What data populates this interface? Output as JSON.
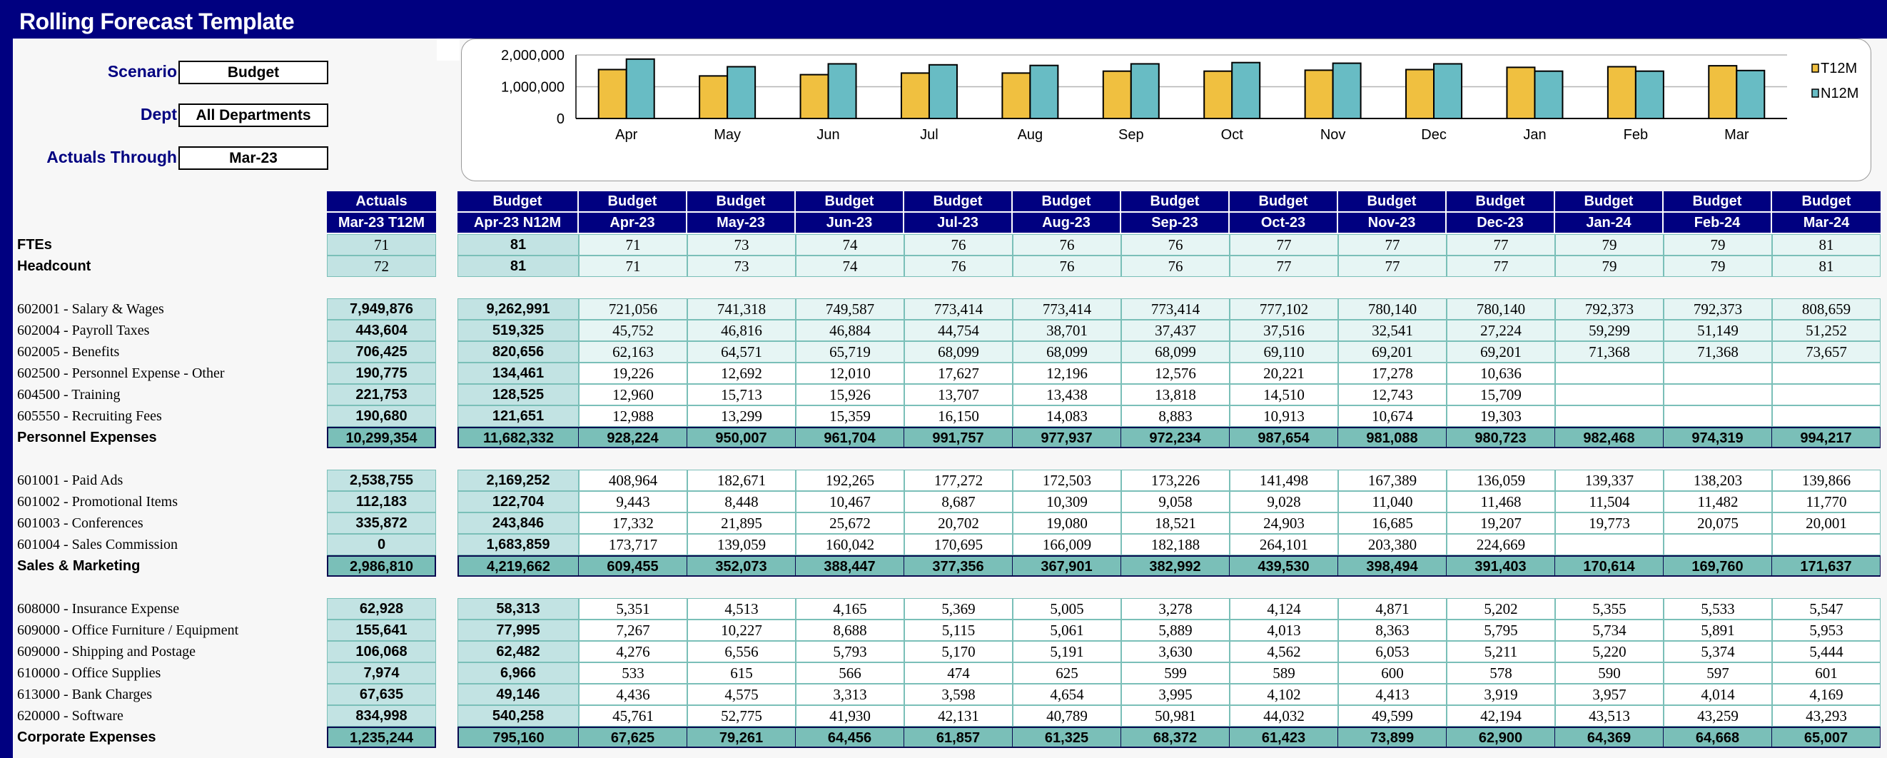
{
  "app": {
    "title": "Rolling Forecast Template"
  },
  "filters": [
    {
      "label": "Scenario",
      "value": "Budget"
    },
    {
      "label": "Dept",
      "value": "All Departments"
    },
    {
      "label": "Actuals Through",
      "value": "Mar-23"
    }
  ],
  "colors": {
    "navy": "#000080",
    "t12m": "#F0C040",
    "n12m": "#68BCC4",
    "total_fill": "#7ABFB8",
    "actual_fill": "#C2E3E3",
    "light_fill": "#E6F5F4"
  },
  "chart_data": {
    "type": "bar",
    "categories": [
      "Apr",
      "May",
      "Jun",
      "Jul",
      "Aug",
      "Sep",
      "Oct",
      "Nov",
      "Dec",
      "Jan",
      "Feb",
      "Mar"
    ],
    "series": [
      {
        "name": "T12M",
        "values": [
          1540000,
          1340000,
          1380000,
          1430000,
          1430000,
          1490000,
          1490000,
          1520000,
          1540000,
          1610000,
          1630000,
          1660000
        ]
      },
      {
        "name": "N12M",
        "values": [
          1870000,
          1630000,
          1720000,
          1690000,
          1670000,
          1720000,
          1760000,
          1740000,
          1720000,
          1490000,
          1490000,
          1510000
        ]
      }
    ],
    "yticks": [
      "0",
      "1,000,000",
      "2,000,000"
    ],
    "ylim": [
      0,
      2000000
    ],
    "grid": true,
    "legend": "right",
    "title": "",
    "xlabel": "",
    "ylabel": ""
  },
  "table": {
    "actual_header": {
      "top": "Actuals",
      "bottom": "Mar-23 T12M"
    },
    "n12m_header": {
      "top": "Budget",
      "bottom": "Apr-23 N12M"
    },
    "month_headers": [
      {
        "top": "Budget",
        "bottom": "Apr-23"
      },
      {
        "top": "Budget",
        "bottom": "May-23"
      },
      {
        "top": "Budget",
        "bottom": "Jun-23"
      },
      {
        "top": "Budget",
        "bottom": "Jul-23"
      },
      {
        "top": "Budget",
        "bottom": "Aug-23"
      },
      {
        "top": "Budget",
        "bottom": "Sep-23"
      },
      {
        "top": "Budget",
        "bottom": "Oct-23"
      },
      {
        "top": "Budget",
        "bottom": "Nov-23"
      },
      {
        "top": "Budget",
        "bottom": "Dec-23"
      },
      {
        "top": "Budget",
        "bottom": "Jan-24"
      },
      {
        "top": "Budget",
        "bottom": "Feb-24"
      },
      {
        "top": "Budget",
        "bottom": "Mar-24"
      }
    ],
    "rows": [
      {
        "label": "FTEs",
        "kind": "hc",
        "actual": "71",
        "n12m": "81",
        "months": [
          "71",
          "73",
          "74",
          "76",
          "76",
          "76",
          "77",
          "77",
          "77",
          "79",
          "79",
          "81"
        ]
      },
      {
        "label": "Headcount",
        "kind": "hc",
        "actual": "72",
        "n12m": "81",
        "months": [
          "71",
          "73",
          "74",
          "76",
          "76",
          "76",
          "77",
          "77",
          "77",
          "79",
          "79",
          "81"
        ]
      },
      {
        "kind": "blank"
      },
      {
        "label": "602001 - Salary & Wages",
        "kind": "light",
        "actual": "7,949,876",
        "n12m": "9,262,991",
        "months": [
          "721,056",
          "741,318",
          "749,587",
          "773,414",
          "773,414",
          "773,414",
          "777,102",
          "780,140",
          "780,140",
          "792,373",
          "792,373",
          "808,659"
        ]
      },
      {
        "label": "602004 - Payroll Taxes",
        "kind": "light",
        "actual": "443,604",
        "n12m": "519,325",
        "months": [
          "45,752",
          "46,816",
          "46,884",
          "44,754",
          "38,701",
          "37,437",
          "37,516",
          "32,541",
          "27,224",
          "59,299",
          "51,149",
          "51,252"
        ]
      },
      {
        "label": "602005 - Benefits",
        "kind": "light",
        "actual": "706,425",
        "n12m": "820,656",
        "months": [
          "62,163",
          "64,571",
          "65,719",
          "68,099",
          "68,099",
          "68,099",
          "69,110",
          "69,201",
          "69,201",
          "71,368",
          "71,368",
          "73,657"
        ]
      },
      {
        "label": "602500 - Personnel Expense - Other",
        "kind": "white",
        "actual": "190,775",
        "n12m": "134,461",
        "months": [
          "19,226",
          "12,692",
          "12,010",
          "17,627",
          "12,196",
          "12,576",
          "20,221",
          "17,278",
          "10,636",
          "",
          "",
          ""
        ]
      },
      {
        "label": "604500 - Training",
        "kind": "white",
        "actual": "221,753",
        "n12m": "128,525",
        "months": [
          "12,960",
          "15,713",
          "15,926",
          "13,707",
          "13,438",
          "13,818",
          "14,510",
          "12,743",
          "15,709",
          "",
          "",
          ""
        ]
      },
      {
        "label": "605550 - Recruiting Fees",
        "kind": "white",
        "actual": "190,680",
        "n12m": "121,651",
        "months": [
          "12,988",
          "13,299",
          "15,359",
          "16,150",
          "14,083",
          "8,883",
          "10,913",
          "10,674",
          "19,303",
          "",
          "",
          ""
        ]
      },
      {
        "label": "Personnel Expenses",
        "kind": "total",
        "actual": "10,299,354",
        "n12m": "11,682,332",
        "months": [
          "928,224",
          "950,007",
          "961,704",
          "991,757",
          "977,937",
          "972,234",
          "987,654",
          "981,088",
          "980,723",
          "982,468",
          "974,319",
          "994,217"
        ]
      },
      {
        "kind": "blank"
      },
      {
        "label": "601001 - Paid Ads",
        "kind": "white",
        "actual": "2,538,755",
        "n12m": "2,169,252",
        "months": [
          "408,964",
          "182,671",
          "192,265",
          "177,272",
          "172,503",
          "173,226",
          "141,498",
          "167,389",
          "136,059",
          "139,337",
          "138,203",
          "139,866"
        ]
      },
      {
        "label": "601002 - Promotional Items",
        "kind": "white",
        "actual": "112,183",
        "n12m": "122,704",
        "months": [
          "9,443",
          "8,448",
          "10,467",
          "8,687",
          "10,309",
          "9,058",
          "9,028",
          "11,040",
          "11,468",
          "11,504",
          "11,482",
          "11,770"
        ]
      },
      {
        "label": "601003 - Conferences",
        "kind": "white",
        "actual": "335,872",
        "n12m": "243,846",
        "months": [
          "17,332",
          "21,895",
          "25,672",
          "20,702",
          "19,080",
          "18,521",
          "24,903",
          "16,685",
          "19,207",
          "19,773",
          "20,075",
          "20,001"
        ]
      },
      {
        "label": "601004 - Sales Commission",
        "kind": "white",
        "actual": "0",
        "n12m": "1,683,859",
        "months": [
          "173,717",
          "139,059",
          "160,042",
          "170,695",
          "166,009",
          "182,188",
          "264,101",
          "203,380",
          "224,669",
          "",
          "",
          ""
        ]
      },
      {
        "label": "Sales & Marketing",
        "kind": "total",
        "actual": "2,986,810",
        "n12m": "4,219,662",
        "months": [
          "609,455",
          "352,073",
          "388,447",
          "377,356",
          "367,901",
          "382,992",
          "439,530",
          "398,494",
          "391,403",
          "170,614",
          "169,760",
          "171,637"
        ]
      },
      {
        "kind": "blank"
      },
      {
        "label": "608000 - Insurance Expense",
        "kind": "white",
        "actual": "62,928",
        "n12m": "58,313",
        "months": [
          "5,351",
          "4,513",
          "4,165",
          "5,369",
          "5,005",
          "3,278",
          "4,124",
          "4,871",
          "5,202",
          "5,355",
          "5,533",
          "5,547"
        ]
      },
      {
        "label": "609000 - Office Furniture / Equipment",
        "kind": "white",
        "actual": "155,641",
        "n12m": "77,995",
        "months": [
          "7,267",
          "10,227",
          "8,688",
          "5,115",
          "5,061",
          "5,889",
          "4,013",
          "8,363",
          "5,795",
          "5,734",
          "5,891",
          "5,953"
        ]
      },
      {
        "label": "609000 - Shipping and Postage",
        "kind": "white",
        "actual": "106,068",
        "n12m": "62,482",
        "months": [
          "4,276",
          "6,556",
          "5,793",
          "5,170",
          "5,191",
          "3,630",
          "4,562",
          "6,053",
          "5,211",
          "5,220",
          "5,374",
          "5,444"
        ]
      },
      {
        "label": "610000 - Office Supplies",
        "kind": "white",
        "actual": "7,974",
        "n12m": "6,966",
        "months": [
          "533",
          "615",
          "566",
          "474",
          "625",
          "599",
          "589",
          "600",
          "578",
          "590",
          "597",
          "601"
        ]
      },
      {
        "label": "613000 - Bank Charges",
        "kind": "white",
        "actual": "67,635",
        "n12m": "49,146",
        "months": [
          "4,436",
          "4,575",
          "3,313",
          "3,598",
          "4,654",
          "3,995",
          "4,102",
          "4,413",
          "3,919",
          "3,957",
          "4,014",
          "4,169"
        ]
      },
      {
        "label": "620000 - Software",
        "kind": "white",
        "actual": "834,998",
        "n12m": "540,258",
        "months": [
          "45,761",
          "52,775",
          "41,930",
          "42,131",
          "40,789",
          "50,981",
          "44,032",
          "49,599",
          "42,194",
          "43,513",
          "43,259",
          "43,293"
        ]
      },
      {
        "label": "Corporate Expenses",
        "kind": "total",
        "actual": "1,235,244",
        "n12m": "795,160",
        "months": [
          "67,625",
          "79,261",
          "64,456",
          "61,857",
          "61,325",
          "68,372",
          "61,423",
          "73,899",
          "62,900",
          "64,369",
          "64,668",
          "65,007"
        ]
      }
    ]
  }
}
